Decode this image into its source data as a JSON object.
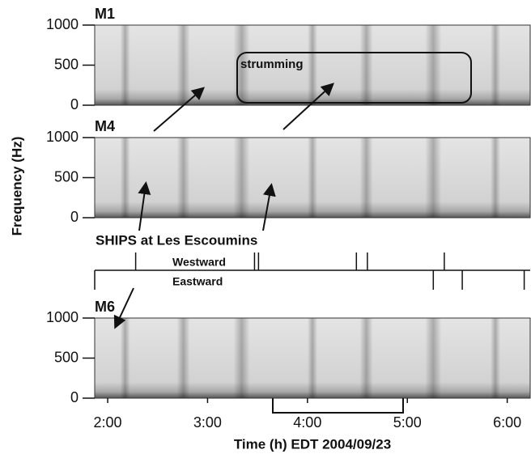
{
  "chart_data": {
    "type": "spectrogram",
    "ylabel": "Frequency (Hz)",
    "xlabel": "Time (h) EDT  2004/09/23",
    "xlim": [
      1.87,
      6.23
    ],
    "xticks": [
      {
        "value": 2,
        "label": "2:00"
      },
      {
        "value": 3,
        "label": "3:00"
      },
      {
        "value": 4,
        "label": "4:00"
      },
      {
        "value": 5,
        "label": "5:00"
      },
      {
        "value": 6,
        "label": "6:00"
      }
    ],
    "panels": [
      {
        "label": "M1",
        "ylim": [
          0,
          1000
        ],
        "yticks": [
          0,
          500,
          1000
        ],
        "annotation": "strumming"
      },
      {
        "label": "M4",
        "ylim": [
          0,
          1000
        ],
        "yticks": [
          0,
          500,
          1000
        ]
      },
      {
        "label": "M6",
        "ylim": [
          0,
          1000
        ],
        "yticks": [
          0,
          500,
          1000
        ]
      }
    ],
    "ships": {
      "label": "SHIPS at Les Escoumins",
      "westward": {
        "label": "Westward",
        "times": [
          2.28,
          3.47,
          3.51,
          4.49,
          4.6,
          5.37
        ]
      },
      "eastward": {
        "label": "Eastward",
        "times": [
          5.26,
          5.55,
          6.17
        ]
      }
    }
  }
}
